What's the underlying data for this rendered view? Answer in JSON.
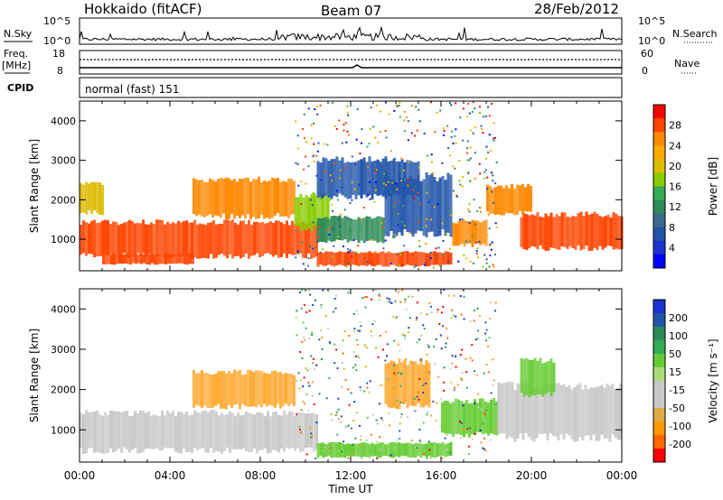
{
  "header": {
    "station": "Hokkaido (fitACF)",
    "beam": "Beam 07",
    "date": "28/Feb/2012"
  },
  "top_strip": {
    "nsky_label": "N.Sky",
    "nsearch_label": "N.Search",
    "scale_left": [
      "10^5",
      "10^0"
    ],
    "scale_right": [
      "10^5",
      "10^0"
    ],
    "freq_label": "Freq.",
    "freq_unit": "[MHz]",
    "freq_ticks": [
      "18",
      "8"
    ],
    "nave_label": "Nave",
    "nave_ticks": [
      "60",
      "0"
    ],
    "cpid_label": "CPID",
    "cpid_value": "normal (fast) 151"
  },
  "chart_data": [
    {
      "type": "heatmap",
      "name": "power",
      "ylabel": "Slant Range [km]",
      "xlabel": "",
      "xlim": [
        0,
        24
      ],
      "ylim": [
        200,
        4500
      ],
      "y_ticks": [
        "1000",
        "2000",
        "3000",
        "4000"
      ],
      "colorbar_label": "Power [dB]",
      "colorbar_ticks": [
        "28",
        "24",
        "20",
        "16",
        "12",
        "8",
        "4"
      ],
      "colorbar_colors": [
        "#ff0000",
        "#ff4400",
        "#ff8800",
        "#ffaa00",
        "#ddbb00",
        "#88cc00",
        "#33aa55",
        "#2e8b57",
        "#3a6b8a",
        "#2255aa",
        "#1a33cc",
        "#0000ff"
      ],
      "regions": [
        {
          "t": [
            0.0,
            10.5
          ],
          "r": [
            500,
            1500
          ],
          "level": 27
        },
        {
          "t": [
            1.0,
            5.0
          ],
          "r": [
            350,
            650
          ],
          "level": 28
        },
        {
          "t": [
            5.0,
            9.5
          ],
          "r": [
            1500,
            2600
          ],
          "level": 25
        },
        {
          "t": [
            0.0,
            1.0
          ],
          "r": [
            1600,
            2500
          ],
          "level": 20
        },
        {
          "t": [
            9.5,
            11.0
          ],
          "r": [
            1200,
            2200
          ],
          "level": 18
        },
        {
          "t": [
            10.5,
            16.5
          ],
          "r": [
            300,
            700
          ],
          "level": 27
        },
        {
          "t": [
            10.5,
            15.0
          ],
          "r": [
            2000,
            3100
          ],
          "level": 8
        },
        {
          "t": [
            13.5,
            16.5
          ],
          "r": [
            1000,
            2700
          ],
          "level": 6
        },
        {
          "t": [
            16.5,
            18.0
          ],
          "r": [
            800,
            1500
          ],
          "level": 24
        },
        {
          "t": [
            18.0,
            20.0
          ],
          "r": [
            1600,
            2400
          ],
          "level": 25
        },
        {
          "t": [
            19.5,
            24.0
          ],
          "r": [
            700,
            1700
          ],
          "level": 27
        },
        {
          "t": [
            10.5,
            13.5
          ],
          "r": [
            900,
            1600
          ],
          "level": 12
        }
      ]
    },
    {
      "type": "heatmap",
      "name": "velocity",
      "ylabel": "Slant Range [km]",
      "xlabel": "Time UT",
      "xlim": [
        0,
        24
      ],
      "ylim": [
        200,
        4500
      ],
      "x_ticks": [
        "00:00",
        "04:00",
        "08:00",
        "12:00",
        "16:00",
        "20:00",
        "00:00"
      ],
      "y_ticks": [
        "1000",
        "2000",
        "3000",
        "4000"
      ],
      "colorbar_label": "Velocity [m s⁻¹]",
      "colorbar_ticks": [
        "200",
        "100",
        "50",
        "15",
        "-15",
        "-50",
        "-100",
        "-200"
      ],
      "colorbar_colors": [
        "#1a33cc",
        "#2255aa",
        "#2e8b57",
        "#33aa55",
        "#66cc33",
        "#aadd77",
        "#c8c8c8",
        "#c8c8c8",
        "#ddaa44",
        "#ff9900",
        "#ff6600",
        "#ff0000"
      ],
      "regions": [
        {
          "t": [
            0.0,
            10.5
          ],
          "r": [
            400,
            1500
          ],
          "color": "#c8c8c8"
        },
        {
          "t": [
            5.0,
            9.5
          ],
          "r": [
            1500,
            2500
          ],
          "color": "#ffaa33"
        },
        {
          "t": [
            10.5,
            16.5
          ],
          "r": [
            300,
            700
          ],
          "color": "#66cc33"
        },
        {
          "t": [
            13.5,
            15.5
          ],
          "r": [
            1500,
            2800
          ],
          "color": "#ffaa33"
        },
        {
          "t": [
            16.0,
            18.5
          ],
          "r": [
            800,
            1800
          ],
          "color": "#66cc33"
        },
        {
          "t": [
            18.5,
            24.0
          ],
          "r": [
            700,
            2200
          ],
          "color": "#c8c8c8"
        },
        {
          "t": [
            19.5,
            21.0
          ],
          "r": [
            1800,
            2800
          ],
          "color": "#66cc33"
        }
      ]
    }
  ]
}
